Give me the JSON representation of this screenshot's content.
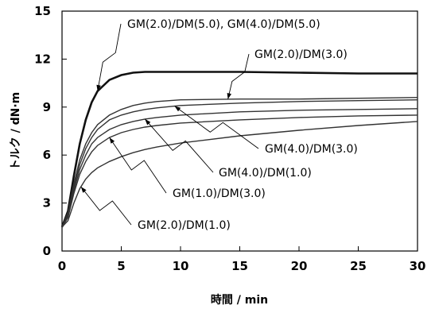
{
  "chart_data": {
    "type": "line",
    "xlabel": "時間 / min",
    "ylabel": "トルク / dN·m",
    "xlim": [
      0,
      30
    ],
    "ylim": [
      0,
      15
    ],
    "x_ticks": [
      "0",
      "5",
      "10",
      "15",
      "20",
      "25",
      "30"
    ],
    "y_ticks": [
      "0",
      "3",
      "6",
      "9",
      "12",
      "15"
    ],
    "grid": false,
    "series": [
      {
        "name": "GM(2.0)/DM(5.0), GM(4.0)/DM(5.0)",
        "x": [
          0,
          0.5,
          1,
          1.5,
          2,
          2.5,
          3,
          4,
          5,
          6,
          7,
          8,
          10,
          15,
          20,
          25,
          30
        ],
        "y": [
          1.5,
          2.5,
          4.7,
          6.7,
          8.2,
          9.3,
          10.0,
          10.7,
          11.0,
          11.15,
          11.2,
          11.2,
          11.2,
          11.2,
          11.15,
          11.1,
          11.1
        ]
      },
      {
        "name": "GM(2.0)/DM(3.0)",
        "x": [
          0,
          0.5,
          1,
          1.5,
          2,
          2.5,
          3,
          4,
          5,
          6,
          7,
          8,
          10,
          15,
          20,
          25,
          30
        ],
        "y": [
          1.5,
          2.4,
          4.2,
          5.7,
          6.7,
          7.4,
          7.9,
          8.5,
          8.85,
          9.1,
          9.25,
          9.35,
          9.45,
          9.5,
          9.5,
          9.55,
          9.6
        ]
      },
      {
        "name": "GM(4.0)/DM(3.0)",
        "x": [
          0,
          0.5,
          1,
          1.5,
          2,
          2.5,
          3,
          4,
          5,
          6,
          7,
          8,
          10,
          15,
          20,
          25,
          30
        ],
        "y": [
          1.5,
          2.3,
          4.0,
          5.4,
          6.4,
          7.1,
          7.6,
          8.2,
          8.5,
          8.7,
          8.85,
          8.95,
          9.1,
          9.25,
          9.35,
          9.4,
          9.45
        ]
      },
      {
        "name": "GM(4.0)/DM(1.0)",
        "x": [
          0,
          0.5,
          1,
          1.5,
          2,
          2.5,
          3,
          4,
          5,
          6,
          7,
          8,
          10,
          15,
          20,
          25,
          30
        ],
        "y": [
          1.5,
          2.2,
          3.8,
          5.1,
          6.0,
          6.7,
          7.1,
          7.6,
          7.9,
          8.1,
          8.25,
          8.35,
          8.5,
          8.7,
          8.8,
          8.85,
          8.9
        ]
      },
      {
        "name": "GM(1.0)/DM(3.0)",
        "x": [
          0,
          0.5,
          1,
          1.5,
          2,
          2.5,
          3,
          4,
          5,
          6,
          7,
          8,
          10,
          15,
          20,
          25,
          30
        ],
        "y": [
          1.5,
          2.1,
          3.6,
          4.8,
          5.6,
          6.2,
          6.6,
          7.1,
          7.4,
          7.6,
          7.75,
          7.85,
          8.0,
          8.2,
          8.35,
          8.45,
          8.5
        ]
      },
      {
        "name": "GM(2.0)/DM(1.0)",
        "x": [
          0,
          0.5,
          1,
          1.5,
          2,
          2.5,
          3,
          4,
          5,
          6,
          7,
          8,
          10,
          15,
          20,
          25,
          30
        ],
        "y": [
          1.5,
          1.9,
          3.0,
          3.9,
          4.5,
          4.9,
          5.2,
          5.6,
          5.9,
          6.15,
          6.35,
          6.5,
          6.75,
          7.2,
          7.55,
          7.85,
          8.1
        ]
      }
    ],
    "annotations": [
      {
        "text": "GM(2.0)/DM(5.0), GM(4.0)/DM(5.0)",
        "series": 0
      },
      {
        "text": "GM(2.0)/DM(3.0)",
        "series": 1
      },
      {
        "text": "GM(4.0)/DM(3.0)",
        "series": 2
      },
      {
        "text": "GM(4.0)/DM(1.0)",
        "series": 3
      },
      {
        "text": "GM(1.0)/DM(3.0)",
        "series": 4
      },
      {
        "text": "GM(2.0)/DM(1.0)",
        "series": 5
      }
    ]
  }
}
